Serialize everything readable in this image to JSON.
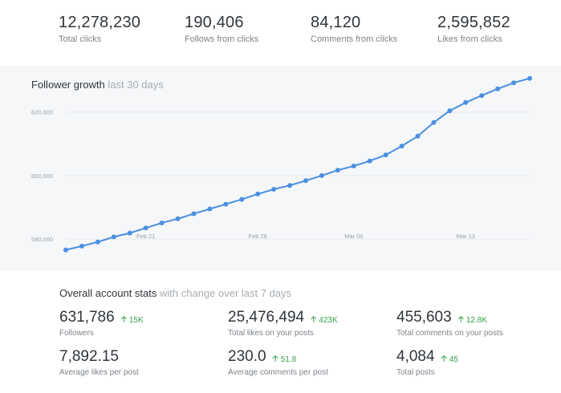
{
  "top_stats": [
    {
      "value": "12,278,230",
      "label": "Total clicks"
    },
    {
      "value": "190,406",
      "label": "Follows from clicks"
    },
    {
      "value": "84,120",
      "label": "Comments from clicks"
    },
    {
      "value": "2,595,852",
      "label": "Likes from clicks"
    }
  ],
  "follower_chart": {
    "title": "Follower growth",
    "subtitle": "last 30 days"
  },
  "chart_data": {
    "type": "line",
    "title": "Follower growth",
    "subtitle": "last 30 days",
    "x_tick_labels": [
      "Feb 21",
      "Feb 28",
      "Mar 06",
      "Mar 13"
    ],
    "y_tick_labels": [
      "580,000",
      "600,000",
      "620,000"
    ],
    "ylim": [
      576000,
      628000
    ],
    "grid": true,
    "series": [
      {
        "color": "#4a8fe0",
        "x": [
          "Feb 16",
          "Feb 17",
          "Feb 18",
          "Feb 19",
          "Feb 20",
          "Feb 21",
          "Feb 22",
          "Feb 23",
          "Feb 24",
          "Feb 25",
          "Feb 26",
          "Feb 27",
          "Feb 28",
          "Mar 01",
          "Mar 02",
          "Mar 03",
          "Mar 04",
          "Mar 05",
          "Mar 06",
          "Mar 07",
          "Mar 08",
          "Mar 09",
          "Mar 10",
          "Mar 11",
          "Mar 12",
          "Mar 13",
          "Mar 14",
          "Mar 15",
          "Mar 16",
          "Mar 17"
        ],
        "values": [
          576600,
          577800,
          579100,
          580700,
          581900,
          583500,
          585100,
          586400,
          588000,
          589500,
          591000,
          592500,
          594200,
          595700,
          596900,
          598400,
          600000,
          601700,
          603000,
          604600,
          606500,
          609300,
          612400,
          616700,
          620400,
          623000,
          625200,
          627300,
          629200,
          630600
        ]
      }
    ]
  },
  "account_stats": {
    "title": "Overall account stats",
    "subtitle": "with change over last 7 days",
    "items": [
      {
        "value": "631,786",
        "change": "15K",
        "label": "Followers"
      },
      {
        "value": "25,476,494",
        "change": "423K",
        "label": "Total likes on your posts"
      },
      {
        "value": "455,603",
        "change": "12.8K",
        "label": "Total comments on your posts"
      },
      {
        "value": "7,892.15",
        "change": "",
        "label": "Average likes per post"
      },
      {
        "value": "230.0",
        "change": "51.8",
        "label": "Average comments per post"
      },
      {
        "value": "4,084",
        "change": "45",
        "label": "Total posts"
      }
    ]
  },
  "colors": {
    "line": "#4a8fe0",
    "positive_change": "#3aa04a",
    "panel_bg": "#f6f7f9"
  },
  "icons": {
    "change": "arrow-up-icon"
  }
}
